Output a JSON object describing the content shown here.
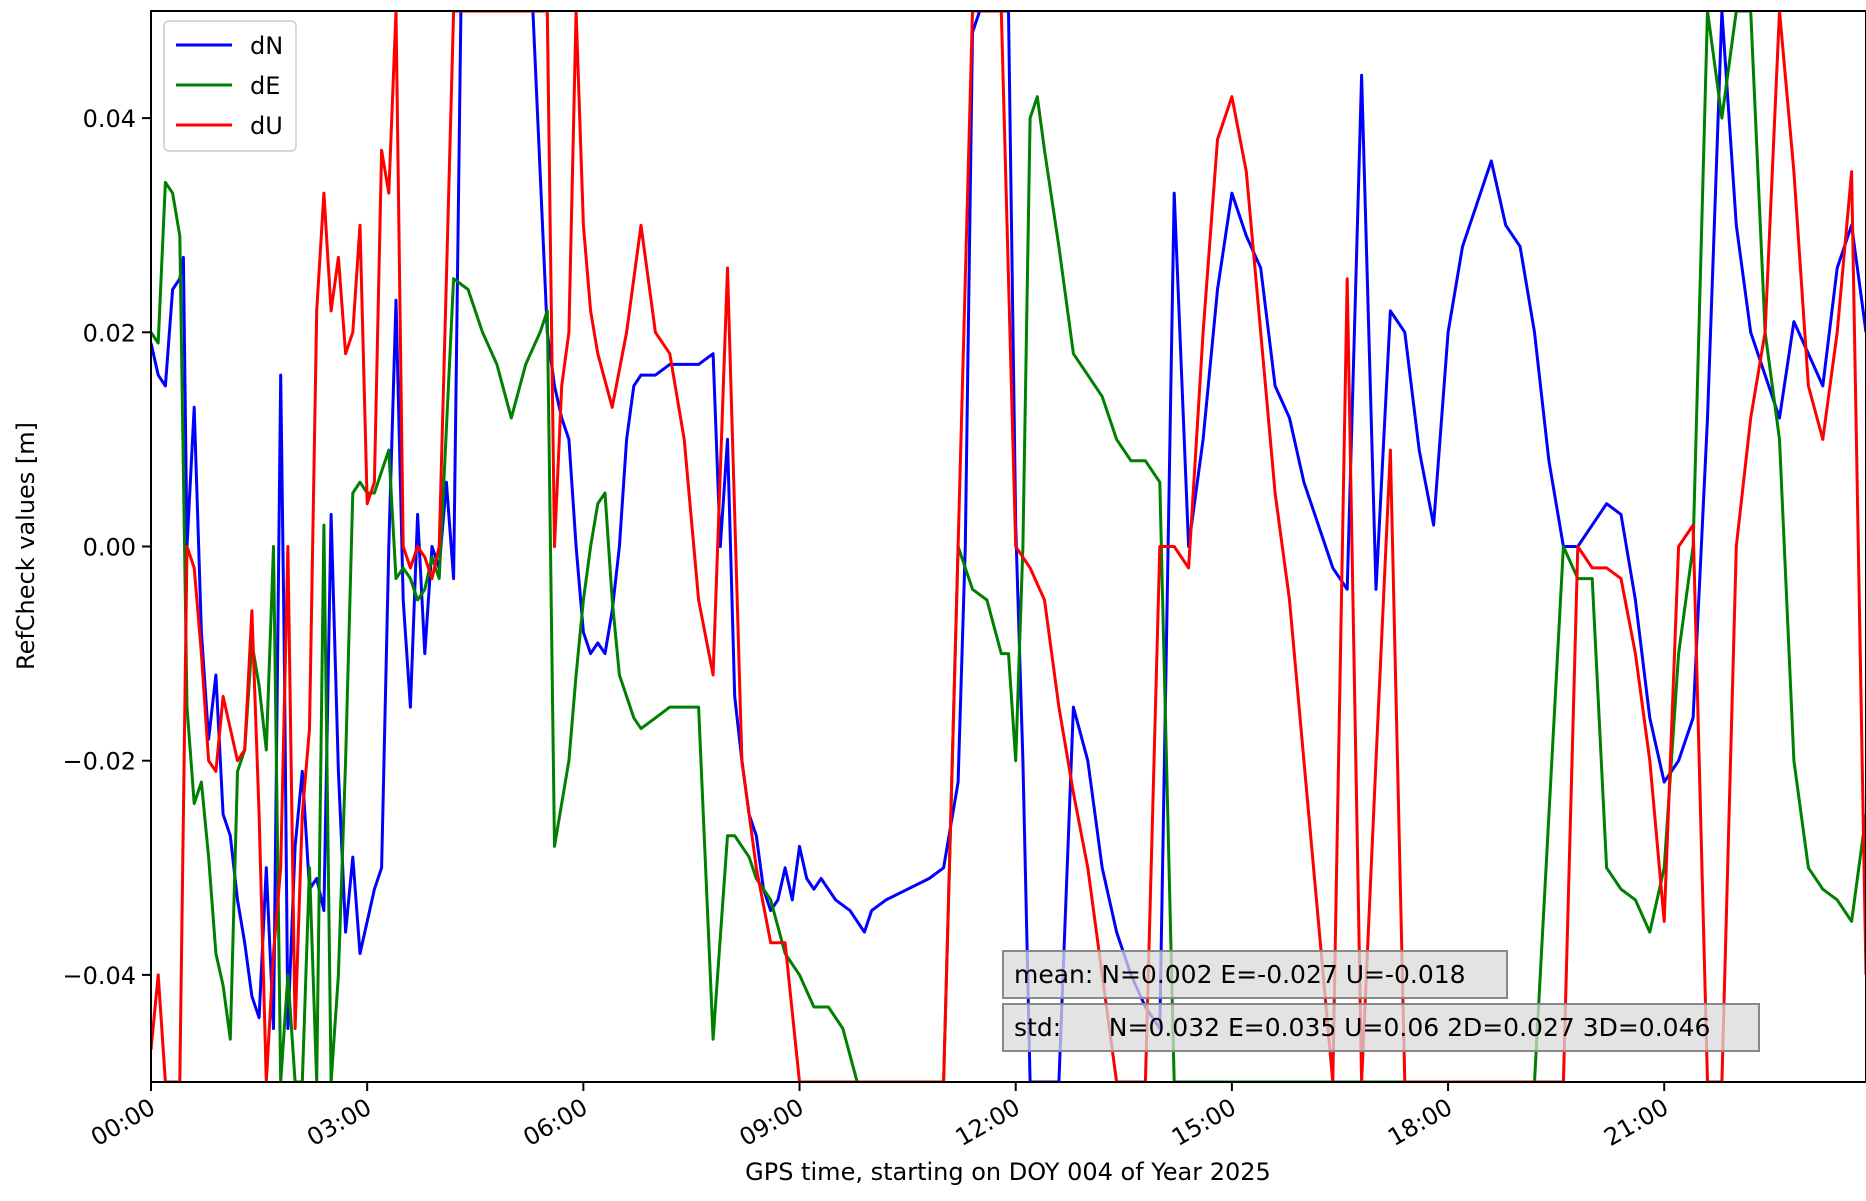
{
  "chart_data": {
    "type": "line",
    "xlabel": "GPS time, starting on DOY 004 of Year 2025",
    "ylabel": "RefCheck values [m]",
    "xlim": [
      0,
      23.8
    ],
    "ylim": [
      -0.05,
      0.05
    ],
    "grid": false,
    "legend_position": "top-left",
    "x_unit": "hours",
    "x_ticks": [
      {
        "value": 0,
        "label": "00:00"
      },
      {
        "value": 3,
        "label": "03:00"
      },
      {
        "value": 6,
        "label": "06:00"
      },
      {
        "value": 9,
        "label": "09:00"
      },
      {
        "value": 12,
        "label": "12:00"
      },
      {
        "value": 15,
        "label": "15:00"
      },
      {
        "value": 18,
        "label": "18:00"
      },
      {
        "value": 21,
        "label": "21:00"
      }
    ],
    "y_ticks": [
      {
        "value": 0.04,
        "label": "0.04"
      },
      {
        "value": 0.02,
        "label": "0.02"
      },
      {
        "value": 0.0,
        "label": "0.00"
      },
      {
        "value": -0.02,
        "label": "−0.02"
      },
      {
        "value": -0.04,
        "label": "−0.04"
      }
    ],
    "series": [
      {
        "name": "dN",
        "color": "#0000ff",
        "x": [
          0,
          0.1,
          0.2,
          0.3,
          0.4,
          0.45,
          0.5,
          0.6,
          0.7,
          0.8,
          0.9,
          1.0,
          1.1,
          1.2,
          1.3,
          1.4,
          1.5,
          1.6,
          1.7,
          1.8,
          1.85,
          1.9,
          2.0,
          2.1,
          2.2,
          2.3,
          2.4,
          2.5,
          2.6,
          2.7,
          2.8,
          2.9,
          3.0,
          3.1,
          3.2,
          3.3,
          3.4,
          3.5,
          3.6,
          3.7,
          3.8,
          3.9,
          4.0,
          4.1,
          4.2,
          4.3,
          4.5,
          4.7,
          4.9,
          5.1,
          5.3,
          5.5,
          5.6,
          5.7,
          5.8,
          5.9,
          6.0,
          6.1,
          6.2,
          6.3,
          6.4,
          6.5,
          6.6,
          6.7,
          6.8,
          7.0,
          7.2,
          7.4,
          7.6,
          7.8,
          7.9,
          8.0,
          8.1,
          8.2,
          8.3,
          8.4,
          8.5,
          8.6,
          8.7,
          8.8,
          8.9,
          9.0,
          9.1,
          9.2,
          9.3,
          9.5,
          9.7,
          9.9,
          10.0,
          10.2,
          10.5,
          10.8,
          11.0,
          11.2,
          11.3,
          11.4,
          11.5,
          11.6,
          11.7,
          11.8,
          11.9,
          12.0,
          12.1,
          12.2,
          12.4,
          12.6,
          12.8,
          13.0,
          13.2,
          13.4,
          13.6,
          13.8,
          14.0,
          14.2,
          14.4,
          14.6,
          14.8,
          15.0,
          15.2,
          15.4,
          15.6,
          15.8,
          16.0,
          16.2,
          16.4,
          16.6,
          16.8,
          17.0,
          17.2,
          17.4,
          17.6,
          17.8,
          18.0,
          18.2,
          18.4,
          18.6,
          18.8,
          19.0,
          19.2,
          19.4,
          19.6,
          19.8,
          20.0,
          20.2,
          20.4,
          20.6,
          20.8,
          21.0,
          21.2,
          21.4,
          21.6,
          21.8,
          22.0,
          22.2,
          22.4,
          22.6,
          22.8,
          23.0,
          23.2,
          23.4,
          23.6,
          23.8
        ],
        "y": [
          0.019,
          0.016,
          0.015,
          0.024,
          0.025,
          0.027,
          0.0,
          0.013,
          -0.008,
          -0.018,
          -0.012,
          -0.025,
          -0.027,
          -0.033,
          -0.037,
          -0.042,
          -0.044,
          -0.03,
          -0.045,
          0.016,
          -0.01,
          -0.045,
          -0.028,
          -0.021,
          -0.032,
          -0.031,
          -0.034,
          0.003,
          -0.021,
          -0.036,
          -0.029,
          -0.038,
          -0.035,
          -0.032,
          -0.03,
          0.0,
          0.023,
          -0.005,
          -0.015,
          0.003,
          -0.01,
          0.0,
          -0.002,
          0.006,
          -0.003,
          0.05,
          0.05,
          0.05,
          0.05,
          0.05,
          0.05,
          0.02,
          0.015,
          0.012,
          0.01,
          0.0,
          -0.008,
          -0.01,
          -0.009,
          -0.01,
          -0.006,
          0.0,
          0.01,
          0.015,
          0.016,
          0.016,
          0.017,
          0.017,
          0.017,
          0.018,
          0.0,
          0.01,
          -0.014,
          -0.02,
          -0.025,
          -0.027,
          -0.032,
          -0.034,
          -0.033,
          -0.03,
          -0.033,
          -0.028,
          -0.031,
          -0.032,
          -0.031,
          -0.033,
          -0.034,
          -0.036,
          -0.034,
          -0.033,
          -0.032,
          -0.031,
          -0.03,
          -0.022,
          0.0,
          0.048,
          0.05,
          0.05,
          0.05,
          0.05,
          0.05,
          0.002,
          -0.02,
          -0.05,
          -0.05,
          -0.05,
          -0.015,
          -0.02,
          -0.03,
          -0.036,
          -0.04,
          -0.043,
          -0.045,
          0.033,
          0.0,
          0.01,
          0.024,
          0.033,
          0.029,
          0.026,
          0.015,
          0.012,
          0.006,
          0.002,
          -0.002,
          -0.004,
          0.044,
          -0.004,
          0.022,
          0.02,
          0.009,
          0.002,
          0.02,
          0.028,
          0.032,
          0.036,
          0.03,
          0.028,
          0.02,
          0.008,
          0.0,
          0.0,
          0.002,
          0.004,
          0.003,
          -0.005,
          -0.016,
          -0.022,
          -0.02,
          -0.016,
          0.012,
          0.05,
          0.03,
          0.02,
          0.016,
          0.012,
          0.021,
          0.018,
          0.015,
          0.026,
          0.03,
          0.02
        ]
      },
      {
        "name": "dE",
        "color": "#008000",
        "x": [
          0,
          0.1,
          0.2,
          0.3,
          0.4,
          0.5,
          0.6,
          0.7,
          0.8,
          0.9,
          1.0,
          1.1,
          1.2,
          1.3,
          1.4,
          1.5,
          1.6,
          1.7,
          1.8,
          1.9,
          2.0,
          2.1,
          2.2,
          2.3,
          2.4,
          2.5,
          2.6,
          2.7,
          2.8,
          2.9,
          3.0,
          3.1,
          3.2,
          3.3,
          3.4,
          3.5,
          3.6,
          3.7,
          3.8,
          3.9,
          4.0,
          4.2,
          4.4,
          4.6,
          4.8,
          5.0,
          5.2,
          5.4,
          5.5,
          5.6,
          5.7,
          5.8,
          5.9,
          6.0,
          6.1,
          6.2,
          6.3,
          6.4,
          6.5,
          6.6,
          6.7,
          6.8,
          7.0,
          7.2,
          7.4,
          7.6,
          7.8,
          8.0,
          8.1,
          8.2,
          8.3,
          8.4,
          8.6,
          8.8,
          9.0,
          9.2,
          9.4,
          9.6,
          9.8,
          10.0,
          10.3,
          10.6,
          11.0,
          11.2,
          11.4,
          11.6,
          11.8,
          11.9,
          12.0,
          12.1,
          12.2,
          12.3,
          12.4,
          12.6,
          12.8,
          13.0,
          13.2,
          13.4,
          13.6,
          13.8,
          14.0,
          14.2,
          14.4,
          14.6,
          14.8,
          15.0,
          15.4,
          15.8,
          16.2,
          16.6,
          16.8,
          17.0,
          17.2,
          17.4,
          17.6,
          17.8,
          18.0,
          18.4,
          18.8,
          19.2,
          19.6,
          19.8,
          20.0,
          20.2,
          20.4,
          20.6,
          20.8,
          21.0,
          21.2,
          21.4,
          21.6,
          21.8,
          22.0,
          22.2,
          22.4,
          22.6,
          22.8,
          23.0,
          23.2,
          23.4,
          23.6,
          23.8
        ],
        "y": [
          0.02,
          0.019,
          0.034,
          0.033,
          0.029,
          -0.015,
          -0.024,
          -0.022,
          -0.029,
          -0.038,
          -0.041,
          -0.046,
          -0.021,
          -0.019,
          -0.009,
          -0.013,
          -0.019,
          0.0,
          -0.05,
          -0.04,
          -0.05,
          -0.05,
          -0.03,
          -0.05,
          0.002,
          -0.05,
          -0.04,
          -0.02,
          0.005,
          0.006,
          0.005,
          0.005,
          0.007,
          0.009,
          -0.003,
          -0.002,
          -0.003,
          -0.005,
          -0.004,
          -0.001,
          -0.003,
          0.025,
          0.024,
          0.02,
          0.017,
          0.012,
          0.017,
          0.02,
          0.022,
          -0.028,
          -0.024,
          -0.02,
          -0.012,
          -0.005,
          0.0,
          0.004,
          0.005,
          -0.005,
          -0.012,
          -0.014,
          -0.016,
          -0.017,
          -0.016,
          -0.015,
          -0.015,
          -0.015,
          -0.046,
          -0.027,
          -0.027,
          -0.028,
          -0.029,
          -0.031,
          -0.033,
          -0.038,
          -0.04,
          -0.043,
          -0.043,
          -0.045,
          -0.05,
          -0.05,
          -0.05,
          -0.05,
          -0.05,
          0.0,
          -0.004,
          -0.005,
          -0.01,
          -0.01,
          -0.02,
          0.0,
          0.04,
          0.042,
          0.037,
          0.028,
          0.018,
          0.016,
          0.014,
          0.01,
          0.008,
          0.008,
          0.006,
          -0.05,
          -0.05,
          -0.05,
          -0.05,
          -0.05,
          -0.05,
          -0.05,
          -0.05,
          -0.05,
          -0.05,
          -0.05,
          -0.05,
          -0.05,
          -0.05,
          -0.05,
          -0.05,
          -0.05,
          -0.05,
          -0.05,
          0.0,
          -0.003,
          -0.003,
          -0.03,
          -0.032,
          -0.033,
          -0.036,
          -0.03,
          -0.01,
          0.0,
          0.05,
          0.04,
          0.05,
          0.05,
          0.02,
          0.01,
          -0.02,
          -0.03,
          -0.032,
          -0.033,
          -0.035,
          -0.025
        ]
      },
      {
        "name": "dU",
        "color": "#ff0000",
        "x": [
          0,
          0.1,
          0.2,
          0.3,
          0.4,
          0.5,
          0.6,
          0.7,
          0.8,
          0.9,
          1.0,
          1.1,
          1.2,
          1.3,
          1.4,
          1.5,
          1.6,
          1.7,
          1.8,
          1.9,
          2.0,
          2.1,
          2.2,
          2.3,
          2.4,
          2.5,
          2.6,
          2.7,
          2.8,
          2.9,
          3.0,
          3.1,
          3.2,
          3.3,
          3.4,
          3.5,
          3.6,
          3.7,
          3.8,
          3.9,
          4.0,
          4.2,
          4.4,
          4.6,
          4.8,
          5.0,
          5.2,
          5.4,
          5.5,
          5.6,
          5.7,
          5.8,
          5.9,
          6.0,
          6.1,
          6.2,
          6.4,
          6.6,
          6.8,
          7.0,
          7.2,
          7.4,
          7.6,
          7.8,
          8.0,
          8.2,
          8.4,
          8.6,
          8.8,
          9.0,
          9.2,
          9.4,
          9.6,
          10.0,
          10.5,
          11.0,
          11.2,
          11.4,
          11.6,
          11.8,
          12.0,
          12.2,
          12.4,
          12.6,
          12.8,
          13.0,
          13.2,
          13.4,
          13.6,
          13.8,
          14.0,
          14.2,
          14.4,
          14.6,
          14.8,
          15.0,
          15.2,
          15.4,
          15.6,
          15.8,
          16.0,
          16.2,
          16.4,
          16.6,
          16.8,
          17.0,
          17.2,
          17.4,
          17.6,
          17.8,
          18.0,
          18.4,
          18.8,
          19.2,
          19.6,
          19.8,
          20.0,
          20.2,
          20.4,
          20.6,
          20.8,
          21.0,
          21.2,
          21.4,
          21.6,
          21.8,
          22.0,
          22.2,
          22.4,
          22.6,
          22.8,
          23.0,
          23.2,
          23.4,
          23.6,
          23.8
        ],
        "y": [
          -0.047,
          -0.04,
          -0.05,
          -0.05,
          -0.05,
          0.0,
          -0.002,
          -0.01,
          -0.02,
          -0.021,
          -0.014,
          -0.017,
          -0.02,
          -0.019,
          -0.006,
          -0.025,
          -0.05,
          -0.038,
          -0.03,
          0.0,
          -0.045,
          -0.025,
          -0.017,
          0.022,
          0.033,
          0.022,
          0.027,
          0.018,
          0.02,
          0.03,
          0.004,
          0.006,
          0.037,
          0.033,
          0.05,
          0.0,
          -0.002,
          0.0,
          -0.001,
          -0.003,
          0.0,
          0.05,
          0.05,
          0.05,
          0.05,
          0.05,
          0.05,
          0.05,
          0.05,
          0.0,
          0.015,
          0.02,
          0.05,
          0.03,
          0.022,
          0.018,
          0.013,
          0.02,
          0.03,
          0.02,
          0.018,
          0.01,
          -0.005,
          -0.012,
          0.026,
          -0.02,
          -0.03,
          -0.037,
          -0.037,
          -0.05,
          -0.05,
          -0.05,
          -0.05,
          -0.05,
          -0.05,
          -0.05,
          0.0,
          0.05,
          0.05,
          0.05,
          0.0,
          -0.002,
          -0.005,
          -0.015,
          -0.023,
          -0.03,
          -0.04,
          -0.05,
          -0.05,
          -0.05,
          0.0,
          0.0,
          -0.002,
          0.02,
          0.038,
          0.042,
          0.035,
          0.02,
          0.005,
          -0.005,
          -0.02,
          -0.035,
          -0.05,
          0.025,
          -0.05,
          -0.02,
          0.009,
          -0.05,
          -0.05,
          -0.05,
          -0.05,
          -0.05,
          -0.05,
          -0.05,
          -0.05,
          0.0,
          -0.002,
          -0.002,
          -0.003,
          -0.01,
          -0.02,
          -0.035,
          0.0,
          0.002,
          -0.05,
          -0.05,
          0.0,
          0.012,
          0.02,
          0.05,
          0.035,
          0.015,
          0.01,
          0.02,
          0.035,
          -0.04
        ]
      }
    ],
    "annotations": [
      "mean: N=0.002 E=-0.027 U=-0.018",
      "std:      N=0.032 E=0.035 U=0.06 2D=0.027 3D=0.046"
    ]
  }
}
